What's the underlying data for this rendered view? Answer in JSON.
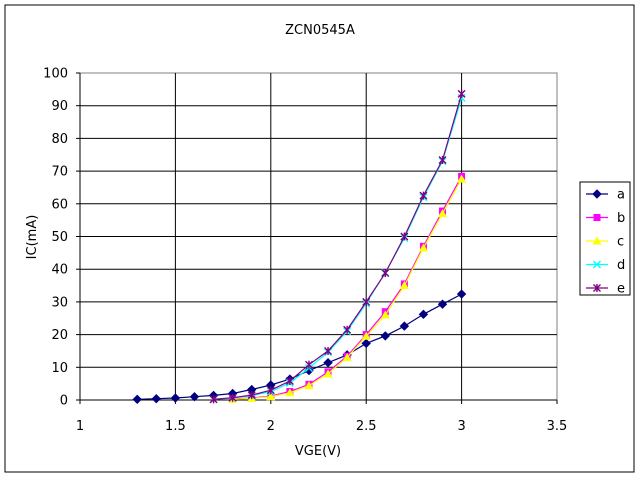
{
  "chart_data": {
    "type": "line",
    "title": "ZCN0545A",
    "xlabel": "VGE(V)",
    "ylabel": "IC(mA)",
    "xlim": [
      1,
      3.5
    ],
    "ylim": [
      0,
      100
    ],
    "x_ticks": [
      "1",
      "1.5",
      "2",
      "2.5",
      "3",
      "3.5"
    ],
    "y_ticks": [
      "0",
      "10",
      "20",
      "30",
      "40",
      "50",
      "60",
      "70",
      "80",
      "90",
      "100"
    ],
    "grid": true,
    "legend_position": "right",
    "series": [
      {
        "name": "a",
        "color": "#000080",
        "marker": "diamond",
        "x": [
          1.3,
          1.4,
          1.5,
          1.6,
          1.7,
          1.8,
          1.9,
          2.0,
          2.1,
          2.2,
          2.3,
          2.4,
          2.5,
          2.6,
          2.7,
          2.8,
          2.9,
          3.0
        ],
        "y": [
          0.2,
          0.4,
          0.6,
          1.0,
          1.4,
          2.0,
          3.2,
          4.6,
          6.4,
          9.0,
          11.4,
          13.8,
          17.3,
          19.6,
          22.6,
          26.2,
          29.3,
          32.4
        ]
      },
      {
        "name": "b",
        "color": "#ff00ff",
        "marker": "square",
        "x": [
          1.8,
          1.9,
          2.0,
          2.1,
          2.2,
          2.3,
          2.4,
          2.5,
          2.6,
          2.7,
          2.8,
          2.9,
          3.0
        ],
        "y": [
          0.3,
          0.6,
          1.2,
          2.6,
          4.8,
          8.6,
          13.4,
          20.0,
          27.0,
          35.5,
          47.0,
          57.8,
          68.4
        ]
      },
      {
        "name": "c",
        "color": "#ffff00",
        "marker": "triangle",
        "x": [
          1.8,
          1.9,
          2.0,
          2.1,
          2.2,
          2.3,
          2.4,
          2.5,
          2.6,
          2.7,
          2.8,
          2.9,
          3.0
        ],
        "y": [
          0.2,
          0.5,
          1.0,
          2.2,
          4.4,
          8.0,
          13.0,
          19.5,
          26.0,
          35.0,
          46.5,
          57.0,
          67.6
        ]
      },
      {
        "name": "d",
        "color": "#00ffff",
        "marker": "x",
        "x": [
          1.7,
          1.8,
          1.9,
          2.0,
          2.1,
          2.2,
          2.3,
          2.4,
          2.5,
          2.6,
          2.7,
          2.8,
          2.9,
          3.0
        ],
        "y": [
          0.2,
          0.6,
          1.3,
          2.6,
          5.2,
          9.8,
          14.6,
          21.0,
          29.5,
          39.0,
          49.5,
          62.0,
          73.0,
          92.4
        ]
      },
      {
        "name": "e",
        "color": "#800080",
        "marker": "star",
        "x": [
          1.7,
          1.8,
          1.9,
          2.0,
          2.1,
          2.2,
          2.3,
          2.4,
          2.5,
          2.6,
          2.7,
          2.8,
          2.9,
          3.0
        ],
        "y": [
          0.2,
          0.7,
          1.5,
          3.0,
          5.8,
          10.8,
          15.0,
          21.5,
          30.0,
          38.8,
          50.0,
          62.5,
          73.4,
          93.6
        ]
      }
    ]
  }
}
